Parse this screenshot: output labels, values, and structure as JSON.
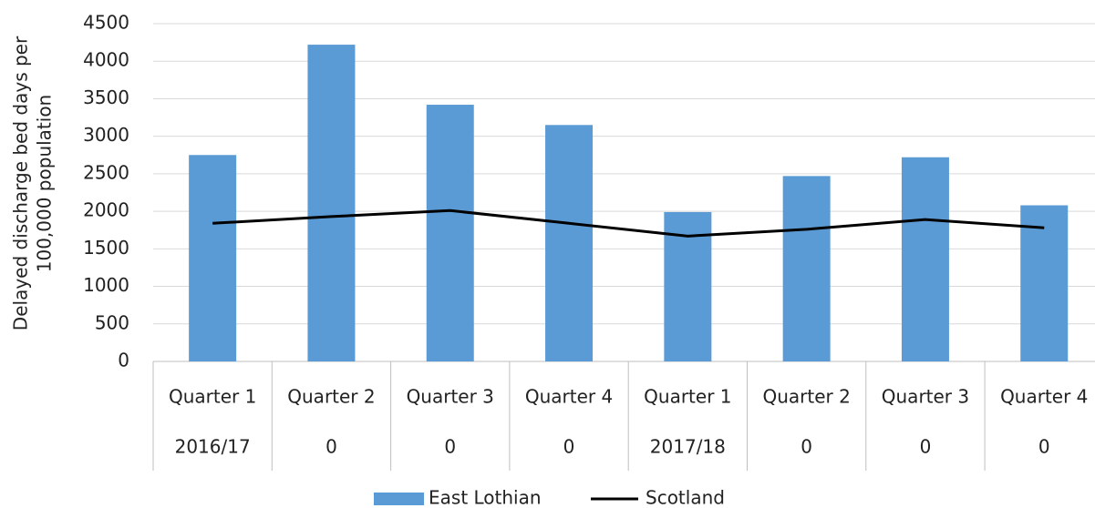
{
  "chart_data": {
    "type": "bar-line",
    "y_label": [
      "Delayed discharge bed days per",
      "100,000 population"
    ],
    "categories": [
      "Quarter 1",
      "Quarter 2",
      "Quarter 3",
      "Quarter 4",
      "Quarter 1",
      "Quarter 2",
      "Quarter 3",
      "Quarter 4"
    ],
    "category_groups": [
      "2016/17",
      "0",
      "0",
      "0",
      "2017/18",
      "0",
      "0",
      "0"
    ],
    "series": [
      {
        "name": "East Lothian",
        "type": "bar",
        "color": "#5b9bd5",
        "values": [
          2750,
          4220,
          3420,
          3150,
          1990,
          2470,
          2720,
          2080
        ]
      },
      {
        "name": "Scotland",
        "type": "line",
        "color": "#000000",
        "values": [
          1840,
          1930,
          2010,
          1840,
          1670,
          1760,
          1890,
          1780
        ]
      }
    ],
    "ylim": [
      0,
      4500
    ],
    "yticks": [
      0,
      500,
      1000,
      1500,
      2000,
      2500,
      3000,
      3500,
      4000,
      4500
    ],
    "grid": true,
    "legend": "bottom"
  }
}
